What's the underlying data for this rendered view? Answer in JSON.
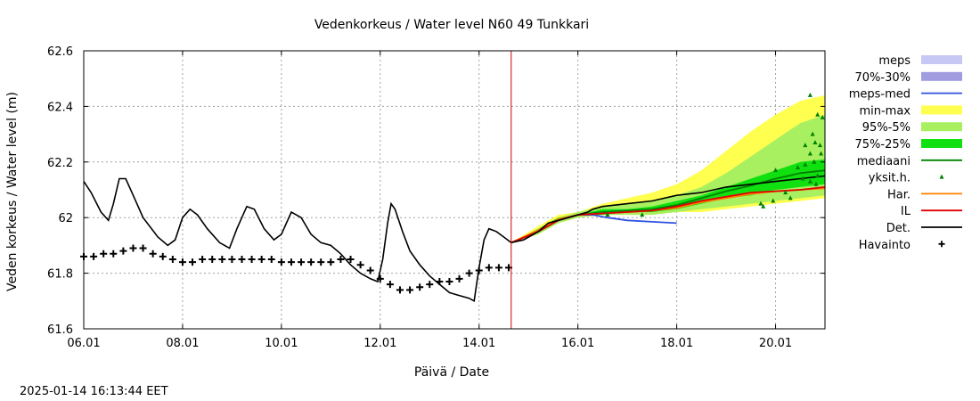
{
  "chart_data": {
    "type": "line",
    "title": "Vedenkorkeus / Water level   N60 49 Tunkkari",
    "xlabel": "Päivä / Date",
    "ylabel": "Veden korkeus / Water level (m)",
    "timestamp": "2025-01-14 16:13:44 EET",
    "x_unit": "days since 06.01",
    "xlim": [
      0,
      15
    ],
    "ylim": [
      61.6,
      62.6
    ],
    "grid": true,
    "x_ticks": [
      {
        "x": 0,
        "label": "06.01"
      },
      {
        "x": 2,
        "label": "08.01"
      },
      {
        "x": 4,
        "label": "10.01"
      },
      {
        "x": 6,
        "label": "12.01"
      },
      {
        "x": 8,
        "label": "14.01"
      },
      {
        "x": 10,
        "label": "16.01"
      },
      {
        "x": 12,
        "label": "18.01"
      },
      {
        "x": 14,
        "label": "20.01"
      }
    ],
    "y_ticks": [
      {
        "y": 61.6,
        "label": "61.6"
      },
      {
        "y": 61.8,
        "label": "61.8"
      },
      {
        "y": 62.0,
        "label": "62"
      },
      {
        "y": 62.2,
        "label": "62.2"
      },
      {
        "y": 62.4,
        "label": "62.4"
      },
      {
        "y": 62.6,
        "label": "62.6"
      }
    ],
    "now_x": 8.65,
    "legend": [
      {
        "label": "meps",
        "kind": "band",
        "color": "#c8c8f4"
      },
      {
        "label": "70%-30%",
        "kind": "band",
        "color": "#a09ce0"
      },
      {
        "label": "meps-med",
        "kind": "line",
        "color": "#3050e0"
      },
      {
        "label": "min-max",
        "kind": "band",
        "color": "#ffff50"
      },
      {
        "label": "95%-5%",
        "kind": "band",
        "color": "#a8f060"
      },
      {
        "label": "75%-25%",
        "kind": "band",
        "color": "#10e010"
      },
      {
        "label": "mediaani",
        "kind": "line",
        "color": "#008000"
      },
      {
        "label": "yksit.h.",
        "kind": "point",
        "color": "#008000"
      },
      {
        "label": "Har.",
        "kind": "line",
        "color": "#ff8000"
      },
      {
        "label": "IL",
        "kind": "line",
        "color": "#e00000"
      },
      {
        "label": "Det.",
        "kind": "line",
        "color": "#000000"
      },
      {
        "label": "Havainto",
        "kind": "cross",
        "color": "#000000"
      }
    ],
    "bands": [
      {
        "name": "min-max",
        "color": "#ffff50",
        "x": [
          8.65,
          9.2,
          9.6,
          10.0,
          10.5,
          11.0,
          11.5,
          12.0,
          12.5,
          13.0,
          13.5,
          14.0,
          14.5,
          15.0
        ],
        "upper": [
          61.91,
          61.97,
          62.01,
          62.02,
          62.05,
          62.07,
          62.09,
          62.12,
          62.17,
          62.24,
          62.31,
          62.37,
          62.42,
          62.44
        ],
        "lower": [
          61.91,
          61.94,
          61.98,
          62.0,
          62.01,
          62.01,
          62.01,
          62.02,
          62.02,
          62.03,
          62.04,
          62.05,
          62.06,
          62.07
        ]
      },
      {
        "name": "95%-5%",
        "color": "#a8f060",
        "x": [
          8.65,
          9.2,
          9.6,
          10.0,
          10.5,
          11.0,
          11.5,
          12.0,
          12.5,
          13.0,
          13.5,
          14.0,
          14.5,
          15.0
        ],
        "upper": [
          61.91,
          61.96,
          62.0,
          62.02,
          62.04,
          62.05,
          62.06,
          62.08,
          62.11,
          62.16,
          62.22,
          62.28,
          62.34,
          62.37
        ],
        "lower": [
          61.91,
          61.94,
          61.98,
          62.0,
          62.01,
          62.01,
          62.01,
          62.02,
          62.03,
          62.04,
          62.05,
          62.06,
          62.07,
          62.08
        ]
      },
      {
        "name": "75%-25%",
        "color": "#10e010",
        "x": [
          8.65,
          9.2,
          9.6,
          10.0,
          10.5,
          11.0,
          11.5,
          12.0,
          12.5,
          13.0,
          13.5,
          14.0,
          14.5,
          15.0
        ],
        "upper": [
          61.91,
          61.96,
          62.0,
          62.01,
          62.03,
          62.03,
          62.04,
          62.06,
          62.08,
          62.11,
          62.14,
          62.17,
          62.2,
          62.21
        ],
        "lower": [
          61.91,
          61.95,
          61.99,
          62.01,
          62.01,
          62.02,
          62.02,
          62.03,
          62.05,
          62.07,
          62.08,
          62.1,
          62.11,
          62.12
        ]
      }
    ],
    "series": [
      {
        "name": "Havainto",
        "kind": "cross",
        "color": "#000000",
        "x": [
          0.0,
          0.2,
          0.4,
          0.6,
          0.8,
          1.0,
          1.2,
          1.4,
          1.6,
          1.8,
          2.0,
          2.2,
          2.4,
          2.6,
          2.8,
          3.0,
          3.2,
          3.4,
          3.6,
          3.8,
          4.0,
          4.2,
          4.4,
          4.6,
          4.8,
          5.0,
          5.2,
          5.4,
          5.6,
          5.8,
          6.0,
          6.2,
          6.4,
          6.6,
          6.8,
          7.0,
          7.2,
          7.4,
          7.6,
          7.8,
          8.0,
          8.2,
          8.4,
          8.6
        ],
        "y": [
          61.86,
          61.86,
          61.87,
          61.87,
          61.88,
          61.89,
          61.89,
          61.87,
          61.86,
          61.85,
          61.84,
          61.84,
          61.85,
          61.85,
          61.85,
          61.85,
          61.85,
          61.85,
          61.85,
          61.85,
          61.84,
          61.84,
          61.84,
          61.84,
          61.84,
          61.84,
          61.85,
          61.85,
          61.83,
          61.81,
          61.78,
          61.76,
          61.74,
          61.74,
          61.75,
          61.76,
          61.77,
          61.77,
          61.78,
          61.8,
          61.81,
          61.82,
          61.82,
          61.82
        ]
      },
      {
        "name": "Det.",
        "kind": "line",
        "color": "#000000",
        "x": [
          0.0,
          0.15,
          0.35,
          0.5,
          0.6,
          0.72,
          0.85,
          1.0,
          1.2,
          1.5,
          1.7,
          1.85,
          2.0,
          2.15,
          2.3,
          2.5,
          2.75,
          2.95,
          3.1,
          3.3,
          3.45,
          3.65,
          3.85,
          4.0,
          4.2,
          4.4,
          4.6,
          4.8,
          5.0,
          5.2,
          5.4,
          5.6,
          5.8,
          5.95,
          6.05,
          6.15,
          6.22,
          6.3,
          6.45,
          6.6,
          6.8,
          7.0,
          7.2,
          7.4,
          7.6,
          7.8,
          7.9,
          8.0,
          8.1,
          8.2,
          8.35,
          8.5,
          8.65,
          8.9,
          9.2,
          9.4,
          9.6,
          9.8,
          10.0,
          10.2,
          10.3,
          10.5,
          11.0,
          11.5,
          12.0,
          12.5,
          13.0,
          13.5,
          14.0,
          14.5,
          15.0
        ],
        "y": [
          62.13,
          62.09,
          62.02,
          61.99,
          62.05,
          62.14,
          62.14,
          62.08,
          62.0,
          61.93,
          61.9,
          61.92,
          62.0,
          62.03,
          62.01,
          61.96,
          61.91,
          61.89,
          61.96,
          62.04,
          62.03,
          61.96,
          61.92,
          61.94,
          62.02,
          62.0,
          61.94,
          61.91,
          61.9,
          61.87,
          61.83,
          61.8,
          61.78,
          61.77,
          61.85,
          61.98,
          62.05,
          62.03,
          61.95,
          61.88,
          61.83,
          61.79,
          61.76,
          61.73,
          61.72,
          61.71,
          61.7,
          61.82,
          61.92,
          61.96,
          61.95,
          61.93,
          61.91,
          61.92,
          61.95,
          61.98,
          61.99,
          62.0,
          62.01,
          62.02,
          62.03,
          62.04,
          62.05,
          62.06,
          62.08,
          62.09,
          62.11,
          62.12,
          62.13,
          62.14,
          62.15
        ]
      },
      {
        "name": "mediaani",
        "kind": "line",
        "color": "#008000",
        "x": [
          8.65,
          9.2,
          9.6,
          10.0,
          10.5,
          11.0,
          11.5,
          12.0,
          12.5,
          13.0,
          13.5,
          14.0,
          14.5,
          15.0
        ],
        "y": [
          61.91,
          61.95,
          61.99,
          62.01,
          62.02,
          62.025,
          62.03,
          62.045,
          62.07,
          62.095,
          62.115,
          62.14,
          62.16,
          62.17
        ]
      },
      {
        "name": "meps-med",
        "kind": "line",
        "color": "#3050e0",
        "x": [
          8.65,
          9.2,
          9.6,
          10.0,
          10.3,
          10.6,
          11.0,
          11.5,
          12.0
        ],
        "y": [
          61.91,
          61.95,
          61.99,
          62.01,
          62.01,
          62.0,
          61.99,
          61.985,
          61.98
        ]
      },
      {
        "name": "Har.",
        "kind": "line",
        "color": "#ff8000",
        "x": [
          8.65,
          9.2,
          9.6,
          10.0,
          10.5,
          11.0,
          11.5,
          12.0,
          12.5,
          13.0,
          13.5,
          14.0,
          14.5,
          15.0
        ],
        "y": [
          61.91,
          61.955,
          61.995,
          62.01,
          62.015,
          62.02,
          62.025,
          62.035,
          62.055,
          62.07,
          62.085,
          62.095,
          62.1,
          62.105
        ]
      },
      {
        "name": "IL",
        "kind": "line",
        "color": "#e00000",
        "x": [
          8.65,
          9.2,
          9.6,
          10.0,
          10.5,
          11.0,
          11.5,
          12.0,
          12.5,
          13.0,
          13.5,
          14.0,
          14.5,
          15.0
        ],
        "y": [
          61.91,
          61.95,
          61.99,
          62.01,
          62.015,
          62.02,
          62.025,
          62.04,
          62.06,
          62.075,
          62.09,
          62.095,
          62.1,
          62.11
        ]
      },
      {
        "name": "yksit.h.",
        "kind": "point",
        "color": "#008000",
        "x": [
          10.6,
          11.3,
          13.7,
          13.75,
          13.95,
          14.0,
          14.2,
          14.3,
          14.45,
          14.55,
          14.6,
          14.7,
          14.75,
          14.8,
          14.85,
          14.9,
          14.95,
          14.7,
          14.78,
          14.85,
          14.92,
          14.6,
          14.7,
          14.82
        ],
        "y": [
          62.01,
          62.01,
          62.05,
          62.04,
          62.06,
          62.17,
          62.09,
          62.07,
          62.18,
          62.14,
          62.26,
          62.23,
          62.3,
          62.27,
          62.37,
          62.26,
          62.36,
          62.44,
          62.2,
          62.15,
          62.23,
          62.19,
          62.13,
          62.12
        ]
      }
    ]
  }
}
